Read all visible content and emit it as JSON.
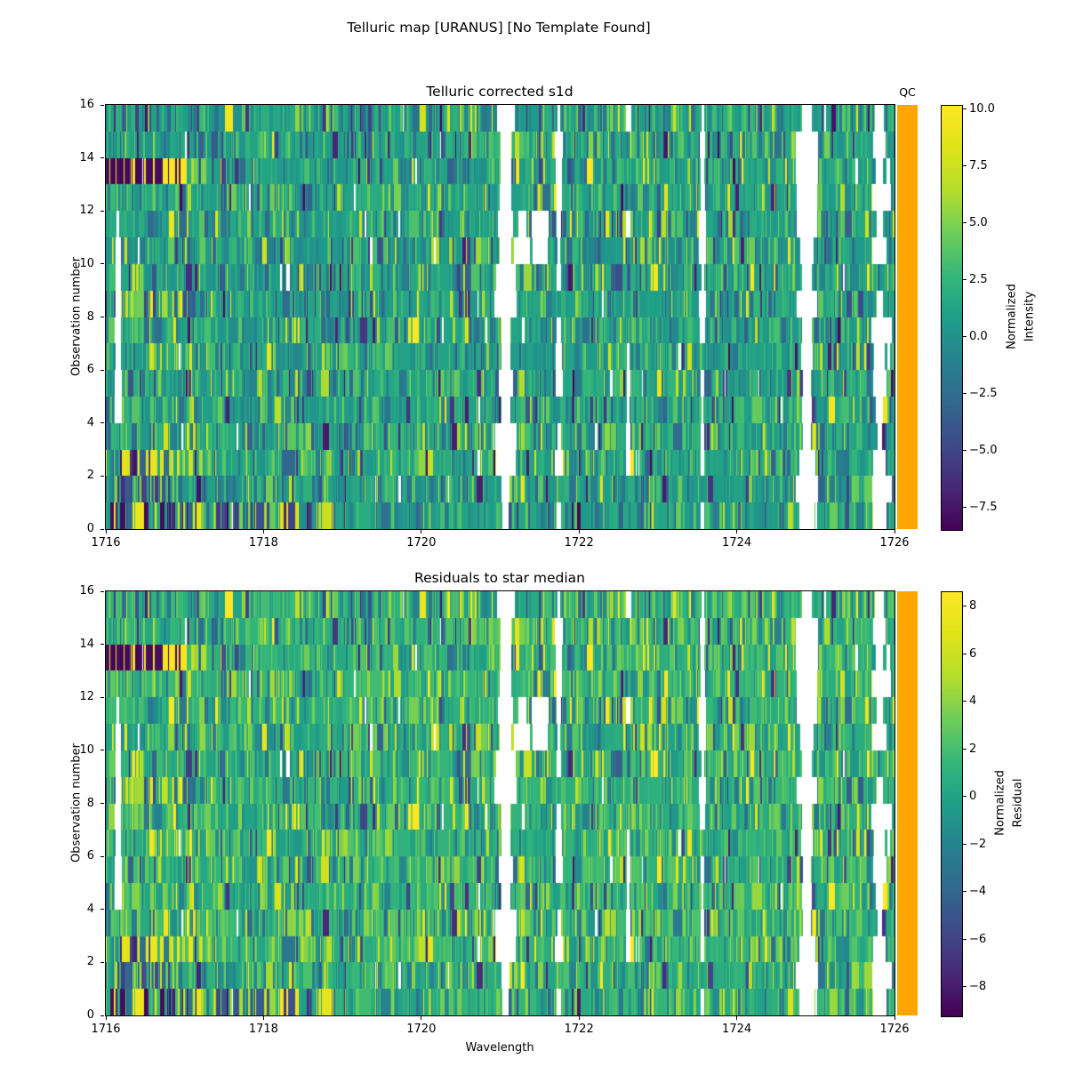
{
  "figure": {
    "suptitle": "Telluric map [URANUS] [No Template Found]",
    "background": "#ffffff"
  },
  "qc": {
    "color": "#FFA500"
  },
  "colors": {
    "viridis_stops": [
      {
        "t": 0.0,
        "hex": "#440154"
      },
      {
        "t": 0.1,
        "hex": "#482878"
      },
      {
        "t": 0.2,
        "hex": "#3e4a89"
      },
      {
        "t": 0.3,
        "hex": "#31688e"
      },
      {
        "t": 0.4,
        "hex": "#26828e"
      },
      {
        "t": 0.5,
        "hex": "#1f9e89"
      },
      {
        "t": 0.6,
        "hex": "#35b779"
      },
      {
        "t": 0.7,
        "hex": "#6dcd59"
      },
      {
        "t": 0.8,
        "hex": "#b4de2c"
      },
      {
        "t": 0.9,
        "hex": "#dfe318"
      },
      {
        "t": 1.0,
        "hex": "#fde725"
      }
    ]
  },
  "panels": [
    {
      "title": "Telluric corrected s1d",
      "ylabel": "Observation number",
      "xlabel": "",
      "qc_header": "QC",
      "x_ticks": [
        {
          "v": 1716,
          "label": "1716"
        },
        {
          "v": 1718,
          "label": "1718"
        },
        {
          "v": 1720,
          "label": "1720"
        },
        {
          "v": 1722,
          "label": "1722"
        },
        {
          "v": 1724,
          "label": "1724"
        },
        {
          "v": 1726,
          "label": "1726"
        }
      ],
      "y_ticks": [
        {
          "v": 0,
          "label": "0"
        },
        {
          "v": 2,
          "label": "2"
        },
        {
          "v": 4,
          "label": "4"
        },
        {
          "v": 6,
          "label": "6"
        },
        {
          "v": 8,
          "label": "8"
        },
        {
          "v": 10,
          "label": "10"
        },
        {
          "v": 12,
          "label": "12"
        },
        {
          "v": 14,
          "label": "14"
        },
        {
          "v": 16,
          "label": "16"
        }
      ],
      "colorbar": {
        "label_line1": "Normalized",
        "label_line2": "Intensity",
        "tick_values": [
          10.0,
          7.5,
          5.0,
          2.5,
          0.0,
          -2.5,
          -5.0,
          -7.5
        ],
        "tick_labels": [
          "10.0",
          "7.5",
          "5.0",
          "2.5",
          "0.0",
          "−2.5",
          "−5.0",
          "−7.5"
        ],
        "vmin": -8.45,
        "vmax": 10.17
      }
    },
    {
      "title": "Residuals to star median",
      "ylabel": "Observation number",
      "xlabel": "Wavelength",
      "qc_header": "",
      "x_ticks": [
        {
          "v": 1716,
          "label": "1716"
        },
        {
          "v": 1718,
          "label": "1718"
        },
        {
          "v": 1720,
          "label": "1720"
        },
        {
          "v": 1722,
          "label": "1722"
        },
        {
          "v": 1724,
          "label": "1724"
        },
        {
          "v": 1726,
          "label": "1726"
        }
      ],
      "y_ticks": [
        {
          "v": 0,
          "label": "0"
        },
        {
          "v": 2,
          "label": "2"
        },
        {
          "v": 4,
          "label": "4"
        },
        {
          "v": 6,
          "label": "6"
        },
        {
          "v": 8,
          "label": "8"
        },
        {
          "v": 10,
          "label": "10"
        },
        {
          "v": 12,
          "label": "12"
        },
        {
          "v": 14,
          "label": "14"
        },
        {
          "v": 16,
          "label": "16"
        }
      ],
      "colorbar": {
        "label_line1": "Normalized",
        "label_line2": "Residual",
        "tick_values": [
          8,
          6,
          4,
          2,
          0,
          -2,
          -4,
          -6,
          -8
        ],
        "tick_labels": [
          "8",
          "6",
          "4",
          "2",
          "0",
          "−2",
          "−4",
          "−6",
          "−8"
        ],
        "vmin": -9.2,
        "vmax": 8.63
      }
    }
  ],
  "chart_data": [
    {
      "type": "heatmap",
      "title": "Telluric corrected s1d",
      "xlabel": "",
      "ylabel": "Observation number",
      "x_axis": {
        "quantity": "Wavelength",
        "range": [
          1716,
          1726
        ],
        "ticks": [
          1716,
          1718,
          1720,
          1722,
          1724,
          1726
        ]
      },
      "y_axis": {
        "quantity": "Observation number",
        "range": [
          0,
          16
        ],
        "ticks": [
          0,
          2,
          4,
          6,
          8,
          10,
          12,
          14,
          16
        ],
        "n_observations": 16
      },
      "colormap": "viridis",
      "color_scale": {
        "vmin": -8.45,
        "vmax": 10.17,
        "colorbar_label": "Normalized Intensity",
        "colorbar_ticks": [
          10.0,
          7.5,
          5.0,
          2.5,
          0.0,
          -2.5,
          -5.0,
          -7.5
        ]
      },
      "qc_column": {
        "header": "QC",
        "color": "#FFA500",
        "meaning": "quality-control flag strip, uniform orange for all 16 observations"
      },
      "signal_summary": "fine vertical channel striping; typical normalized intensity between -1 and 3 (teal/green), sparse bright channels (5 to 10) and dark channels (-3 to -8)",
      "masked_wavelength_bands": [
        {
          "wl": [
            1721.0,
            1721.13
          ],
          "rows": "all"
        },
        {
          "wl": [
            1724.82,
            1724.95
          ],
          "rows": "all"
        },
        {
          "wl": [
            1725.76,
            1725.85
          ],
          "rows": "most"
        },
        {
          "wl": [
            1725.9,
            1725.94
          ],
          "rows": "few"
        },
        {
          "wl": [
            1723.54,
            1723.58
          ],
          "rows": "most"
        },
        {
          "wl": [
            1721.72,
            1721.76
          ],
          "rows": "most"
        },
        {
          "wl": [
            1722.6,
            1722.64
          ],
          "rows": "half"
        },
        {
          "wl": [
            1716.13,
            1716.17
          ],
          "rows": [
            4,
            5,
            6,
            7,
            8,
            9,
            10,
            11
          ]
        },
        {
          "wl": [
            1721.23,
            1721.32
          ],
          "rows": [
            10,
            11
          ]
        },
        {
          "wl": [
            1721.45,
            1721.56
          ],
          "rows": [
            10,
            11
          ]
        }
      ],
      "anomalous_regions": [
        {
          "observation": 13,
          "wl": [
            1716.0,
            1717.02
          ],
          "pattern": "extreme_binary",
          "note": "alternating saturated min/max stripes"
        },
        {
          "observation": 13,
          "wl": [
            1717.02,
            1717.35
          ],
          "pattern": "hot_streaks",
          "note": "sparse tail of extreme stripes"
        },
        {
          "observation": 0,
          "wl": [
            1716.03,
            1717.2
          ],
          "pattern": "extreme_mixed",
          "note": "dense yellow/purple mix"
        },
        {
          "observation": 0,
          "wl": [
            1717.2,
            1718.8
          ],
          "pattern": "dark_mix",
          "note": "dark navy stripes trailing"
        },
        {
          "observation": 1,
          "wl": [
            1716.0,
            1716.75
          ],
          "pattern": "dark_mix"
        },
        {
          "observation": 2,
          "wl": [
            1716.05,
            1717.0
          ],
          "pattern": "hot_streaks"
        },
        {
          "observation": 8,
          "wl": [
            1716.1,
            1717.15
          ],
          "pattern": "hot_streaks"
        },
        {
          "observation": 8,
          "wl": [
            1720.45,
            1721.0
          ],
          "pattern": "dark_mix"
        },
        {
          "observation": 10,
          "wl": [
            1720.5,
            1721.1
          ],
          "pattern": "dark_mix"
        },
        {
          "observation": 11,
          "wl": [
            1722.2,
            1722.5
          ],
          "pattern": "dark_mix"
        }
      ]
    },
    {
      "type": "heatmap",
      "title": "Residuals to star median",
      "xlabel": "Wavelength",
      "ylabel": "Observation number",
      "x_axis": {
        "quantity": "Wavelength",
        "range": [
          1716,
          1726
        ],
        "ticks": [
          1716,
          1718,
          1720,
          1722,
          1724,
          1726
        ]
      },
      "y_axis": {
        "quantity": "Observation number",
        "range": [
          0,
          16
        ],
        "ticks": [
          0,
          2,
          4,
          6,
          8,
          10,
          12,
          14,
          16
        ],
        "n_observations": 16
      },
      "colormap": "viridis",
      "color_scale": {
        "vmin": -9.2,
        "vmax": 8.63,
        "colorbar_label": "Normalized Residual",
        "colorbar_ticks": [
          8,
          6,
          4,
          2,
          0,
          -2,
          -4,
          -6,
          -8
        ]
      },
      "qc_column": {
        "header": "",
        "color": "#FFA500",
        "meaning": "quality-control flag strip, uniform orange for all 16 observations"
      },
      "signal_summary": "residual map visually identical in structure to the corrected s1d map: same striping, same masked bands, same anomalous observations",
      "masked_wavelength_bands": [
        {
          "wl": [
            1721.0,
            1721.13
          ],
          "rows": "all"
        },
        {
          "wl": [
            1724.82,
            1724.95
          ],
          "rows": "all"
        },
        {
          "wl": [
            1725.76,
            1725.85
          ],
          "rows": "most"
        },
        {
          "wl": [
            1725.9,
            1725.94
          ],
          "rows": "few"
        },
        {
          "wl": [
            1723.54,
            1723.58
          ],
          "rows": "most"
        },
        {
          "wl": [
            1721.72,
            1721.76
          ],
          "rows": "most"
        },
        {
          "wl": [
            1722.6,
            1722.64
          ],
          "rows": "half"
        },
        {
          "wl": [
            1716.13,
            1716.17
          ],
          "rows": [
            4,
            5,
            6,
            7,
            8,
            9,
            10,
            11
          ]
        },
        {
          "wl": [
            1721.23,
            1721.32
          ],
          "rows": [
            10,
            11
          ]
        },
        {
          "wl": [
            1721.45,
            1721.56
          ],
          "rows": [
            10,
            11
          ]
        }
      ],
      "anomalous_regions": [
        {
          "observation": 13,
          "wl": [
            1716.0,
            1717.02
          ],
          "pattern": "extreme_binary",
          "note": "alternating saturated min/max stripes"
        },
        {
          "observation": 13,
          "wl": [
            1717.02,
            1717.35
          ],
          "pattern": "hot_streaks",
          "note": "sparse tail of extreme stripes"
        },
        {
          "observation": 0,
          "wl": [
            1716.03,
            1717.2
          ],
          "pattern": "extreme_mixed",
          "note": "dense yellow/purple mix"
        },
        {
          "observation": 0,
          "wl": [
            1717.2,
            1718.8
          ],
          "pattern": "dark_mix",
          "note": "dark navy stripes trailing"
        },
        {
          "observation": 1,
          "wl": [
            1716.0,
            1716.75
          ],
          "pattern": "dark_mix"
        },
        {
          "observation": 2,
          "wl": [
            1716.05,
            1717.0
          ],
          "pattern": "hot_streaks"
        },
        {
          "observation": 8,
          "wl": [
            1716.1,
            1717.15
          ],
          "pattern": "hot_streaks"
        },
        {
          "observation": 8,
          "wl": [
            1720.45,
            1721.0
          ],
          "pattern": "dark_mix"
        },
        {
          "observation": 10,
          "wl": [
            1720.5,
            1721.1
          ],
          "pattern": "dark_mix"
        },
        {
          "observation": 11,
          "wl": [
            1722.2,
            1722.5
          ],
          "pattern": "dark_mix"
        }
      ]
    }
  ]
}
